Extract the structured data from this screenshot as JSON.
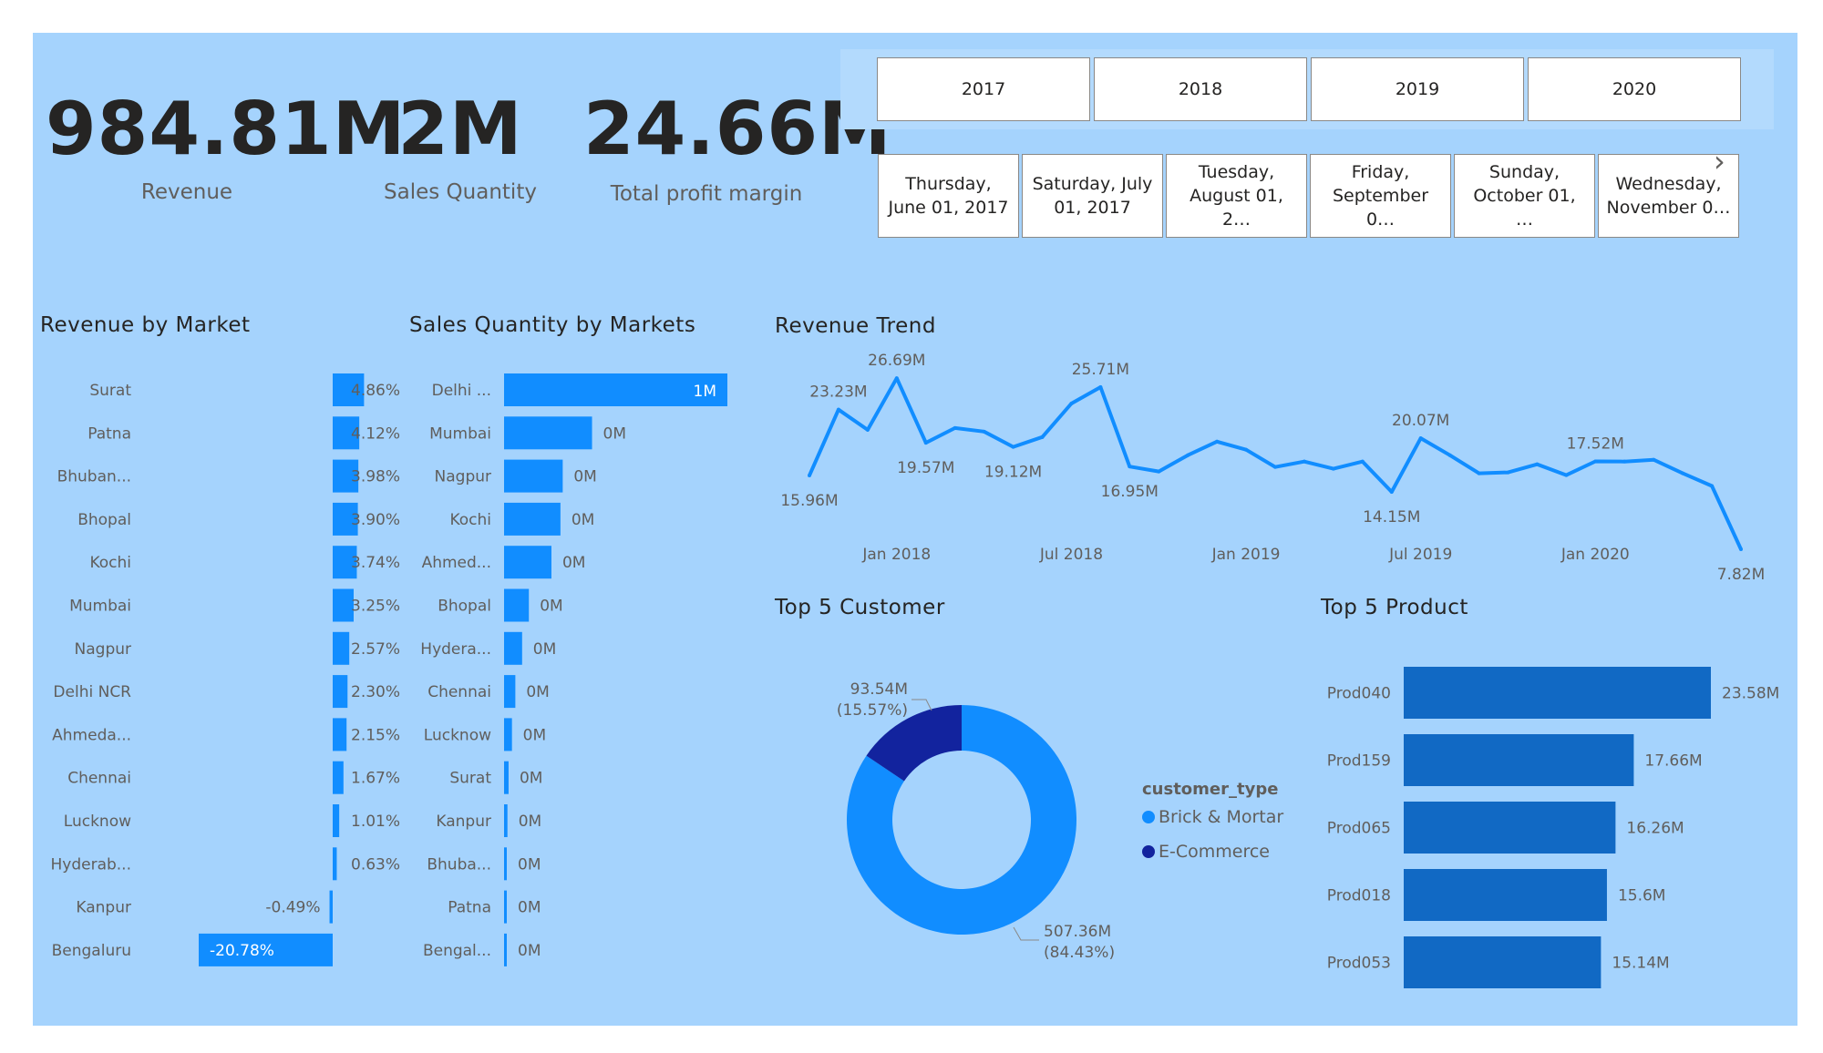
{
  "kpis": [
    {
      "value": "984.81M",
      "label": "Revenue"
    },
    {
      "value": "2M",
      "label": "Sales Quantity"
    },
    {
      "value": "24.66M",
      "label": "Total profit margin"
    }
  ],
  "year_slicer": [
    "2017",
    "2018",
    "2019",
    "2020"
  ],
  "date_slicer": [
    "Thursday, June 01, 2017",
    "Saturday, July 01, 2017",
    "Tuesday, August 01, 2…",
    "Friday, September 0…",
    "Sunday, October 01, …",
    "Wednesday, November 0…"
  ],
  "icons": {
    "next": "chevron-right-icon"
  },
  "colors": {
    "background": "#a5d3fd",
    "bar": "#118dff",
    "bar_dark": "#1169c4",
    "ecommerce": "#12239e",
    "line": "#118dff"
  },
  "chart_data": [
    {
      "type": "bar",
      "title": "Revenue by Market",
      "orientation": "horizontal",
      "categories": [
        "Surat",
        "Patna",
        "Bhuban...",
        "Bhopal",
        "Kochi",
        "Mumbai",
        "Nagpur",
        "Delhi NCR",
        "Ahmeda...",
        "Chennai",
        "Lucknow",
        "Hyderab...",
        "Kanpur",
        "Bengaluru"
      ],
      "values": [
        4.86,
        4.12,
        3.98,
        3.9,
        3.74,
        3.25,
        2.57,
        2.3,
        2.15,
        1.67,
        1.01,
        0.63,
        -0.49,
        -20.78
      ],
      "labels": [
        "4.86%",
        "4.12%",
        "3.98%",
        "3.90%",
        "3.74%",
        "3.25%",
        "2.57%",
        "2.30%",
        "2.15%",
        "1.67%",
        "1.01%",
        "0.63%",
        "-0.49%",
        "-20.78%"
      ]
    },
    {
      "type": "bar",
      "title": "Sales Quantity by Markets",
      "orientation": "horizontal",
      "categories": [
        "Delhi ...",
        "Mumbai",
        "Nagpur",
        "Kochi",
        "Ahmed...",
        "Bhopal",
        "Hydera...",
        "Chennai",
        "Lucknow",
        "Surat",
        "Kanpur",
        "Bhuba...",
        "Patna",
        "Bengal..."
      ],
      "values": [
        0.99,
        0.39,
        0.26,
        0.25,
        0.21,
        0.11,
        0.08,
        0.05,
        0.035,
        0.02,
        0.015,
        0.012,
        0.01,
        0.008
      ],
      "labels": [
        "1M",
        "0M",
        "0M",
        "0M",
        "0M",
        "0M",
        "0M",
        "0M",
        "0M",
        "0M",
        "0M",
        "0M",
        "0M",
        "0M"
      ]
    },
    {
      "type": "line",
      "title": "Revenue Trend",
      "x": [
        "2017-10",
        "2017-11",
        "2017-12",
        "2018-01",
        "2018-02",
        "2018-03",
        "2018-04",
        "2018-05",
        "2018-06",
        "2018-07",
        "2018-08",
        "2018-09",
        "2018-10",
        "2018-11",
        "2018-12",
        "2019-01",
        "2019-02",
        "2019-03",
        "2019-04",
        "2019-05",
        "2019-06",
        "2019-07",
        "2019-08",
        "2019-09",
        "2019-10",
        "2019-11",
        "2019-12",
        "2020-01",
        "2020-02",
        "2020-03",
        "2020-04",
        "2020-05",
        "2020-06"
      ],
      "values": [
        15.96,
        23.23,
        21.0,
        26.69,
        19.57,
        21.2,
        20.8,
        19.12,
        20.2,
        23.9,
        25.71,
        16.95,
        16.4,
        18.2,
        19.7,
        18.8,
        16.9,
        17.5,
        16.7,
        17.5,
        14.15,
        20.07,
        18.2,
        16.2,
        16.3,
        17.2,
        16.0,
        17.52,
        17.5,
        17.7,
        16.2,
        14.8,
        7.82
      ],
      "point_labels": [
        "15.96M",
        "23.23M",
        "",
        "26.69M",
        "19.57M",
        "",
        "",
        "19.12M",
        "",
        "",
        "25.71M",
        "16.95M",
        "",
        "",
        "",
        "",
        "",
        "",
        "",
        "",
        "14.15M",
        "20.07M",
        "",
        "",
        "",
        "",
        "",
        "17.52M",
        "",
        "",
        "",
        "",
        "7.82M"
      ],
      "x_ticks": [
        "Jan 2018",
        "Jul 2018",
        "Jan 2019",
        "Jul 2019",
        "Jan 2020"
      ]
    },
    {
      "type": "pie",
      "title": "Top 5 Customer",
      "legend_title": "customer_type",
      "categories": [
        "Brick & Mortar",
        "E-Commerce"
      ],
      "values": [
        507.36,
        93.54
      ],
      "value_labels": [
        "507.36M",
        "93.54M"
      ],
      "percent_labels": [
        "(84.43%)",
        "(15.57%)"
      ]
    },
    {
      "type": "bar",
      "title": "Top 5 Product",
      "orientation": "horizontal",
      "categories": [
        "Prod040",
        "Prod159",
        "Prod065",
        "Prod018",
        "Prod053"
      ],
      "values": [
        23.58,
        17.66,
        16.26,
        15.6,
        15.14
      ],
      "labels": [
        "23.58M",
        "17.66M",
        "16.26M",
        "15.6M",
        "15.14M"
      ]
    }
  ]
}
